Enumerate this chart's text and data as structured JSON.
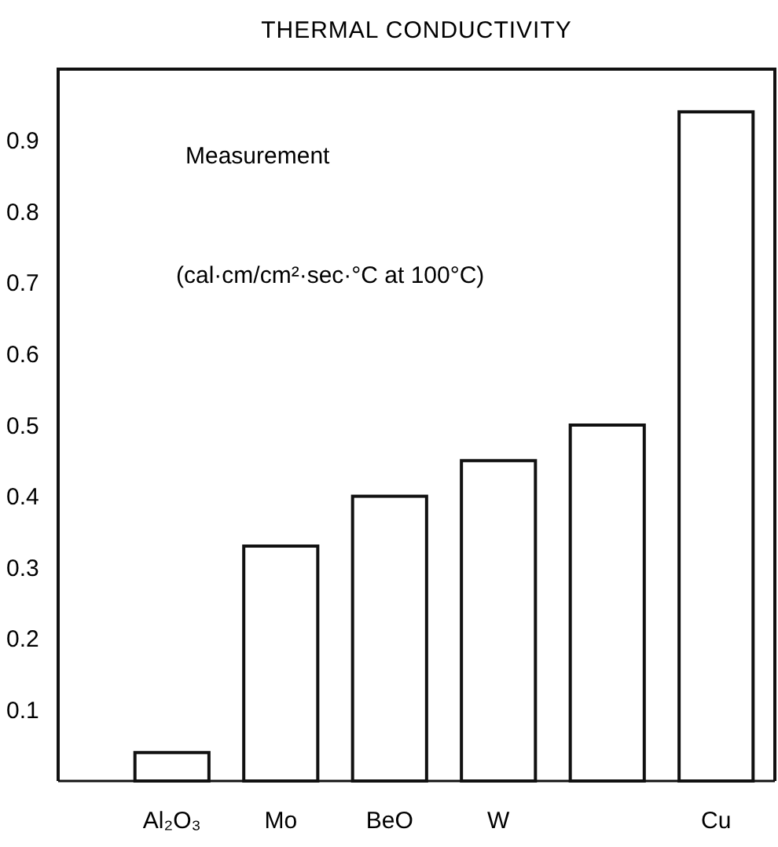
{
  "chart_data": {
    "type": "bar",
    "title": "THERMAL CONDUCTIVITY",
    "categories": [
      "Al₂O₃",
      "Mo",
      "BeO",
      "W",
      null,
      "Cu"
    ],
    "values": [
      0.04,
      0.33,
      0.4,
      0.45,
      0.5,
      0.94
    ],
    "color": "#ffffff",
    "ylim": [
      0,
      1.0
    ],
    "yticks": [
      0.1,
      0.2,
      0.3,
      0.4,
      0.5,
      0.6,
      0.7,
      0.8,
      0.9
    ],
    "annotations": [
      "Measurement",
      "(cal·cm/cm²·sec·°C at 100°C)"
    ],
    "grid": false
  }
}
